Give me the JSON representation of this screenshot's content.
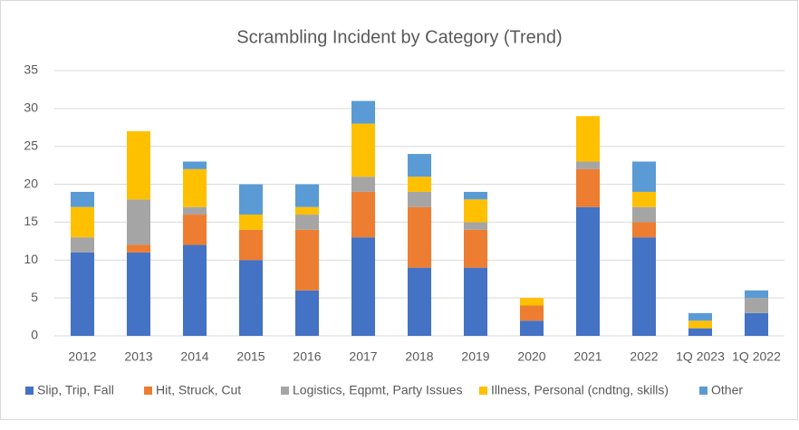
{
  "chart_data": {
    "type": "stacked_bar",
    "title": "Scrambling Incident by Category (Trend)",
    "categories": [
      "2012",
      "2013",
      "2014",
      "2015",
      "2016",
      "2017",
      "2018",
      "2019",
      "2020",
      "2021",
      "2022",
      "1Q 2023",
      "1Q 2022"
    ],
    "series": [
      {
        "name": "Slip, Trip, Fall",
        "color": "#4472c4",
        "values": [
          11,
          11,
          12,
          10,
          6,
          13,
          9,
          9,
          2,
          17,
          13,
          1,
          3
        ]
      },
      {
        "name": "Hit, Struck, Cut",
        "color": "#ed7d31",
        "values": [
          0,
          1,
          4,
          4,
          8,
          6,
          8,
          5,
          2,
          5,
          2,
          0,
          0
        ]
      },
      {
        "name": "Logistics, Eqpmt, Party Issues",
        "color": "#a5a5a5",
        "values": [
          2,
          6,
          1,
          0,
          2,
          2,
          2,
          1,
          0,
          1,
          2,
          0,
          2
        ]
      },
      {
        "name": "Illness, Personal (cndtng, skills)",
        "color": "#ffc000",
        "values": [
          4,
          9,
          5,
          2,
          1,
          7,
          2,
          3,
          1,
          6,
          2,
          1,
          0
        ]
      },
      {
        "name": "Other",
        "color": "#5b9bd5",
        "values": [
          2,
          0,
          1,
          4,
          3,
          3,
          3,
          1,
          0,
          0,
          4,
          1,
          1
        ]
      }
    ],
    "ylim": [
      0,
      35
    ],
    "yticks": [
      0,
      5,
      10,
      15,
      20,
      25,
      30,
      35
    ],
    "grid": true,
    "legend": "bottom"
  }
}
